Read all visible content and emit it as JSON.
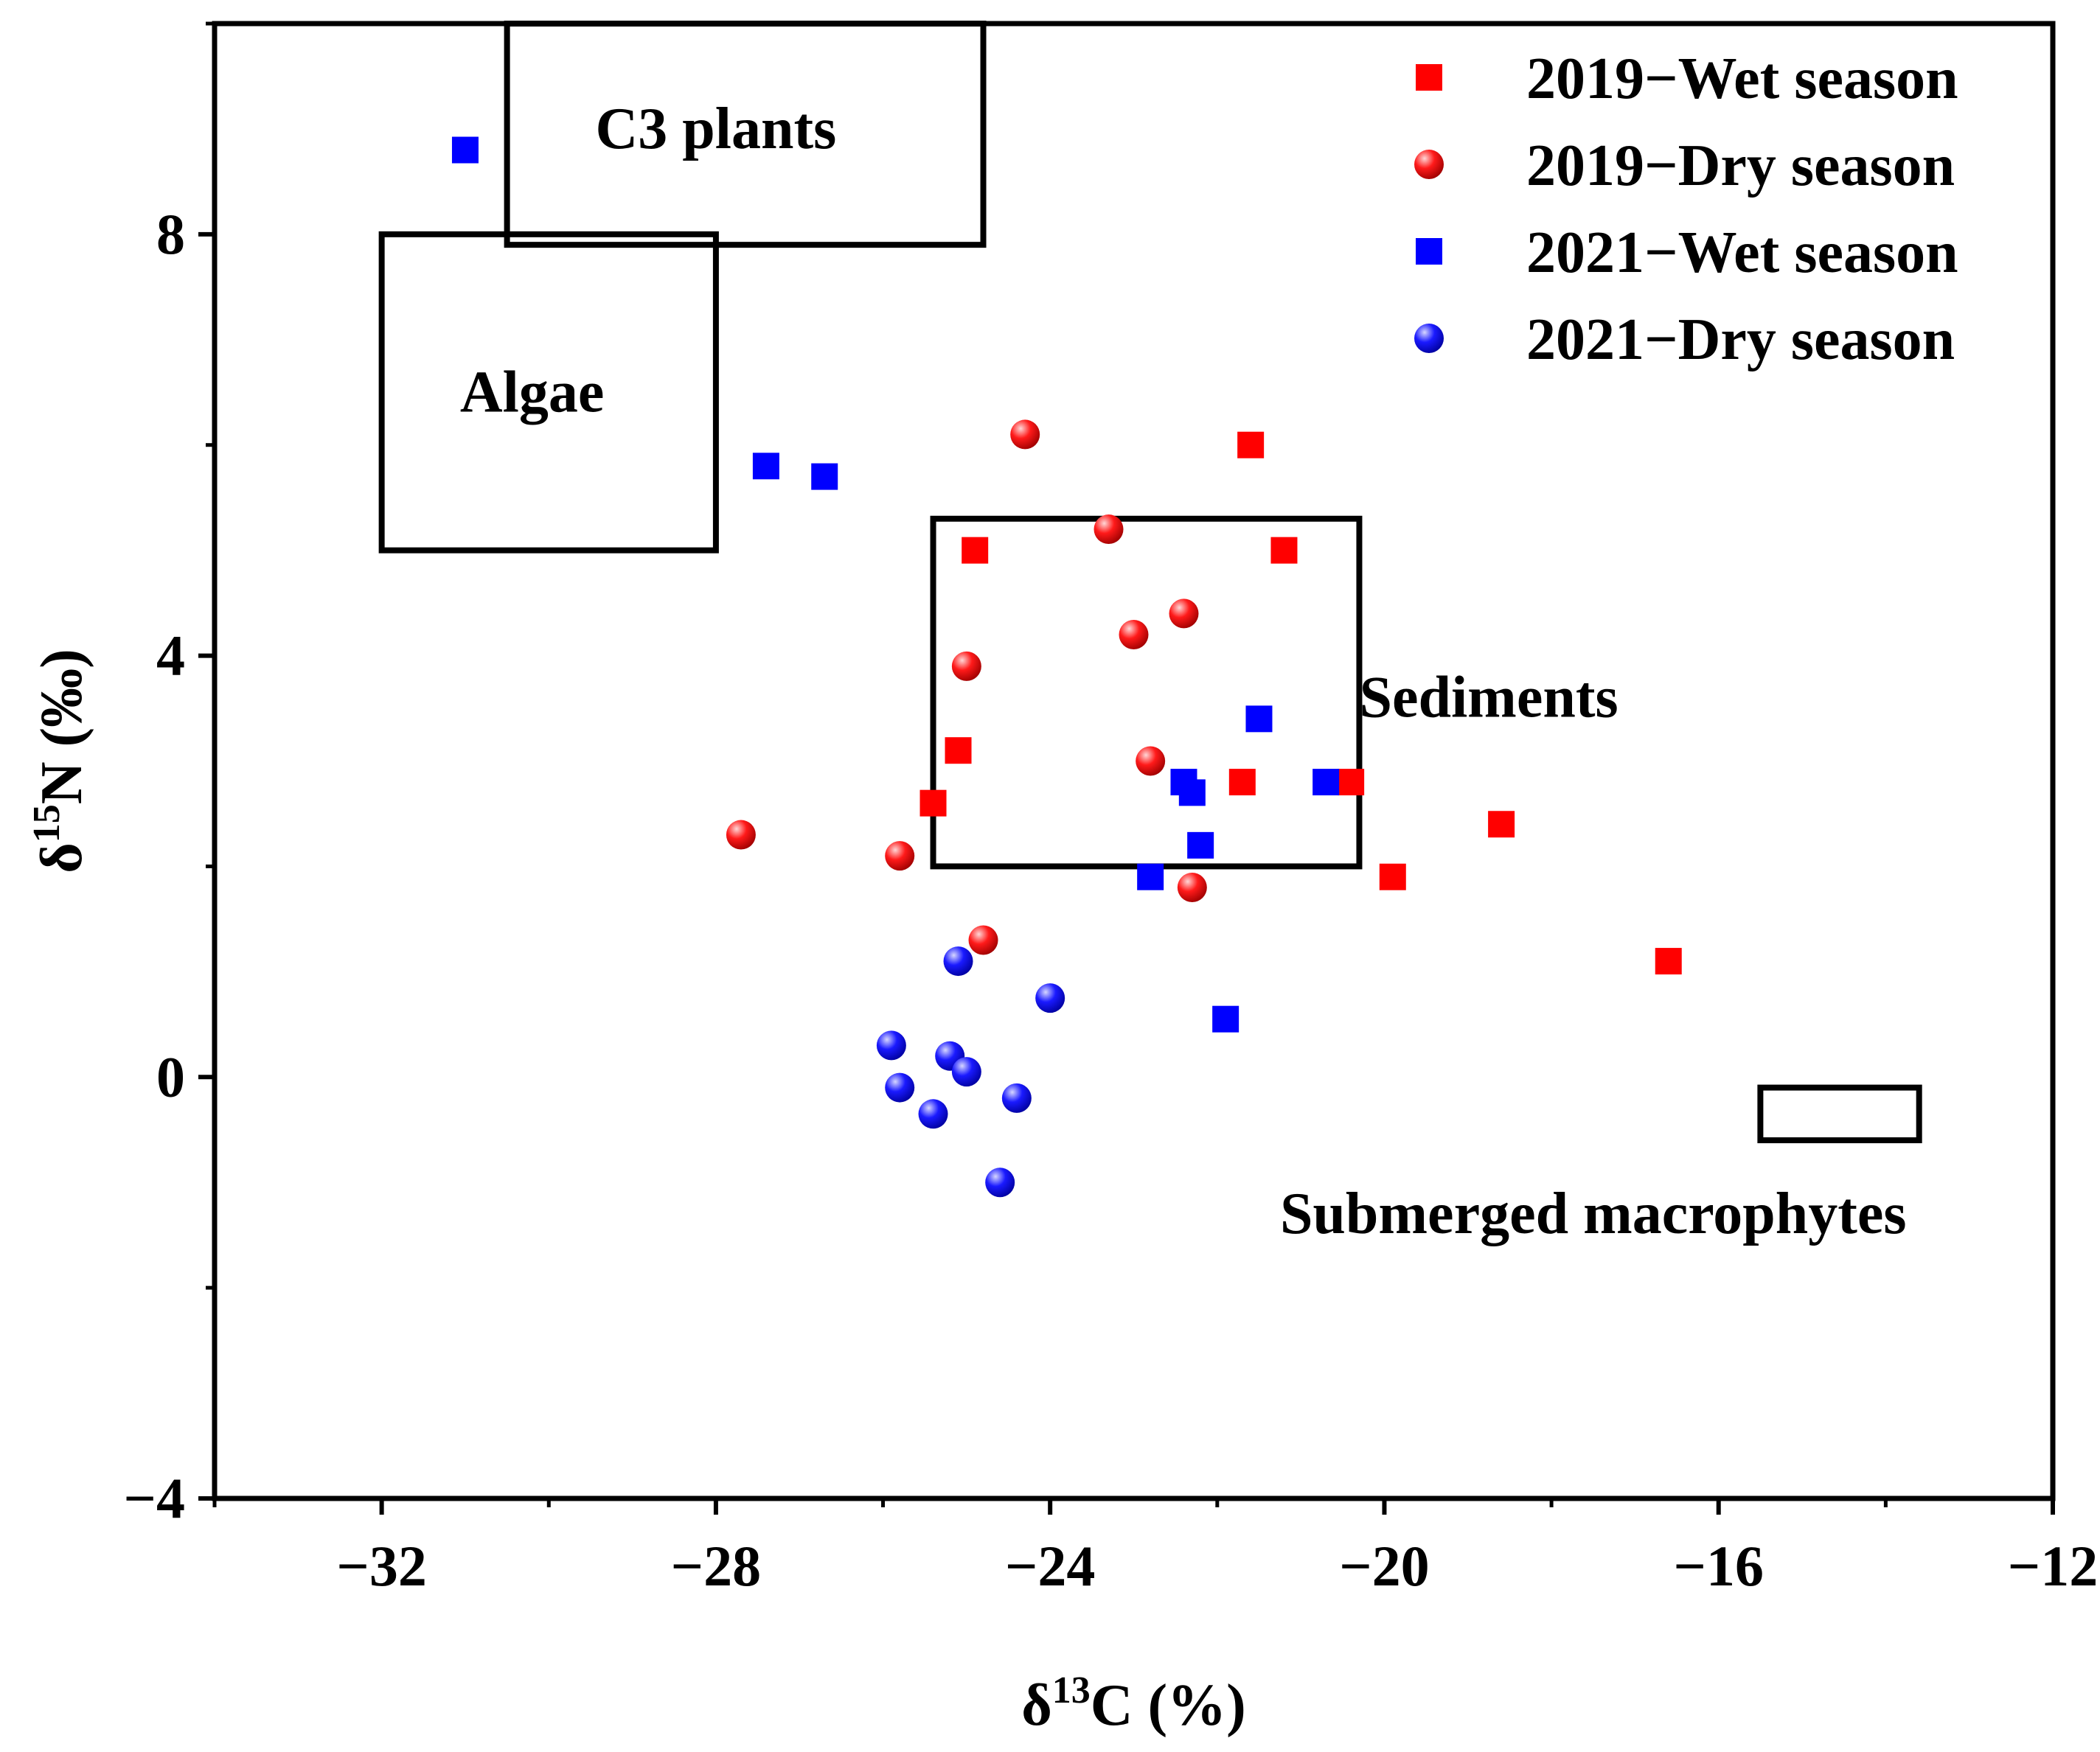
{
  "chart_data": {
    "type": "scatter",
    "xlabel": "δ13C (%)",
    "xlabel_main": "δ",
    "xlabel_sup": "13",
    "xlabel_rest": "C (%)",
    "ylabel": "δ15N (‰)",
    "ylabel_main": "δ",
    "ylabel_sup": "15",
    "ylabel_rest": "N (‰)",
    "xlim": [
      -34,
      -12
    ],
    "ylim": [
      -4,
      10
    ],
    "xticks": [
      -32,
      -28,
      -24,
      -20,
      -16,
      -12
    ],
    "xtick_labels": [
      "−32",
      "−28",
      "−24",
      "−20",
      "−16",
      "−12"
    ],
    "yticks": [
      -4,
      0,
      4,
      8
    ],
    "ytick_labels": [
      "−4",
      "0",
      "4",
      "8"
    ],
    "grid": false,
    "legend_position": "top-right",
    "series": [
      {
        "name": "2019−Wet season",
        "marker": "square",
        "color": "#ff0000",
        "points": [
          [
            -21.6,
            6.0
          ],
          [
            -24.9,
            5.0
          ],
          [
            -21.2,
            5.0
          ],
          [
            -25.1,
            3.1
          ],
          [
            -25.4,
            2.6
          ],
          [
            -21.7,
            2.8
          ],
          [
            -20.4,
            2.8
          ],
          [
            -19.9,
            1.9
          ],
          [
            -18.6,
            2.4
          ],
          [
            -16.6,
            1.1
          ]
        ]
      },
      {
        "name": "2019−Dry season",
        "marker": "circle",
        "color": "#ff0000",
        "points": [
          [
            -24.3,
            6.1
          ],
          [
            -23.3,
            5.2
          ],
          [
            -23.0,
            4.2
          ],
          [
            -22.4,
            4.4
          ],
          [
            -25.0,
            3.9
          ],
          [
            -22.8,
            3.0
          ],
          [
            -27.7,
            2.3
          ],
          [
            -25.8,
            2.1
          ],
          [
            -22.3,
            1.8
          ],
          [
            -24.8,
            1.3
          ]
        ]
      },
      {
        "name": "2021−Wet season",
        "marker": "square",
        "color": "#0000ff",
        "points": [
          [
            -31.0,
            8.8
          ],
          [
            -27.4,
            5.8
          ],
          [
            -26.7,
            5.7
          ],
          [
            -21.5,
            3.4
          ],
          [
            -22.4,
            2.8
          ],
          [
            -20.7,
            2.8
          ],
          [
            -22.3,
            2.7
          ],
          [
            -22.2,
            2.2
          ],
          [
            -22.8,
            1.9
          ],
          [
            -21.9,
            0.55
          ]
        ]
      },
      {
        "name": "2021−Dry season",
        "marker": "circle",
        "color": "#0000ff",
        "points": [
          [
            -25.1,
            1.1
          ],
          [
            -24.0,
            0.75
          ],
          [
            -25.9,
            0.3
          ],
          [
            -25.2,
            0.2
          ],
          [
            -25.0,
            0.05
          ],
          [
            -25.8,
            -0.1
          ],
          [
            -25.4,
            -0.35
          ],
          [
            -24.4,
            -0.2
          ],
          [
            -24.6,
            -1.0
          ]
        ]
      }
    ],
    "source_regions": [
      {
        "name": "C3 plants",
        "x": [
          -30.5,
          -24.8
        ],
        "y": [
          7.9,
          10.0
        ],
        "label": "C3 plants",
        "label_at": [
          -28.0,
          9.0
        ]
      },
      {
        "name": "Algae",
        "x": [
          -32.0,
          -28.0
        ],
        "y": [
          5.0,
          8.0
        ],
        "label": "Algae",
        "label_at": [
          -30.2,
          6.5
        ]
      },
      {
        "name": "Sediments",
        "x": [
          -25.4,
          -20.3
        ],
        "y": [
          2.0,
          5.3
        ],
        "label": "Sediments",
        "label_at": [
          -20.3,
          3.6
        ]
      },
      {
        "name": "Submerged macrophytes",
        "x": [
          -15.5,
          -13.6
        ],
        "y": [
          -0.6,
          -0.1
        ],
        "label": "Submerged macrophytes",
        "label_at": [
          -17.5,
          -1.3
        ]
      }
    ]
  }
}
